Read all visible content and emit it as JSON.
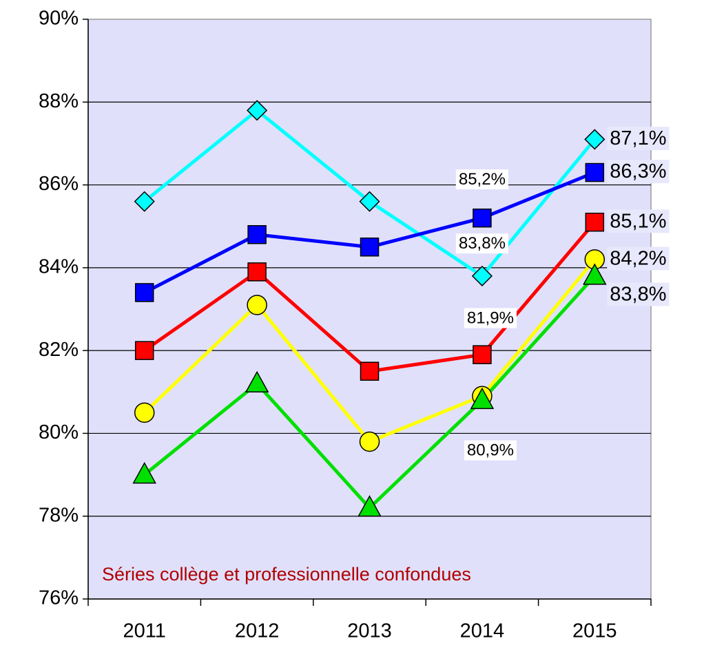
{
  "chart_data": {
    "type": "line",
    "categories": [
      "2011",
      "2012",
      "2013",
      "2014",
      "2015"
    ],
    "series": [
      {
        "color": "#00ffff",
        "marker": "diamond",
        "values": [
          85.6,
          87.8,
          85.6,
          83.8,
          87.1
        ],
        "value_labels": [
          null,
          null,
          null,
          "83,8%",
          "87,1%"
        ]
      },
      {
        "color": "#0000ff",
        "marker": "square",
        "values": [
          83.4,
          84.8,
          84.5,
          85.2,
          86.3
        ],
        "value_labels": [
          null,
          null,
          null,
          "85,2%",
          "86,3%"
        ]
      },
      {
        "color": "#ff0000",
        "marker": "square",
        "values": [
          82.0,
          83.9,
          81.5,
          81.9,
          85.1
        ],
        "value_labels": [
          null,
          null,
          null,
          "81,9%",
          "85,1%"
        ]
      },
      {
        "color": "#ffff00",
        "marker": "circle",
        "values": [
          80.5,
          83.1,
          79.8,
          80.9,
          84.2
        ],
        "value_labels": [
          null,
          null,
          null,
          "80,9%",
          "84,2%"
        ]
      },
      {
        "color": "#00e000",
        "marker": "triangle",
        "values": [
          79.0,
          81.2,
          78.2,
          80.8,
          83.8
        ],
        "value_labels": [
          null,
          null,
          null,
          null,
          "83,8%"
        ]
      }
    ],
    "ylim": [
      76,
      90
    ],
    "yticks": [
      {
        "value": 76,
        "label": "76%"
      },
      {
        "value": 78,
        "label": "78%"
      },
      {
        "value": 80,
        "label": "80%"
      },
      {
        "value": 82,
        "label": "82%"
      },
      {
        "value": 84,
        "label": "84%"
      },
      {
        "value": 86,
        "label": "86%"
      },
      {
        "value": 88,
        "label": "88%"
      },
      {
        "value": 90,
        "label": "90%"
      }
    ],
    "grid": true,
    "annotation": "Séries collège et professionnelle confondues"
  }
}
